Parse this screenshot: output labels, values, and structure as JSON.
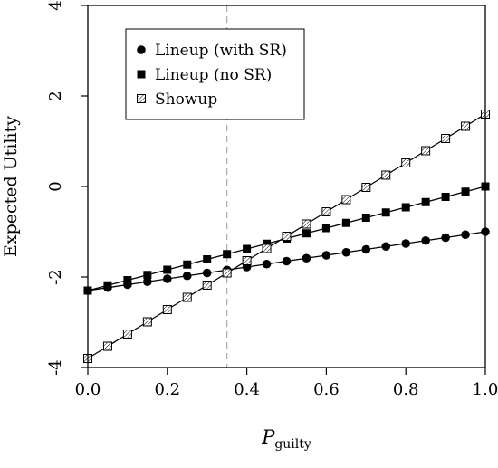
{
  "chart_data": {
    "type": "line",
    "xlabel": {
      "main": "P",
      "sub": "guilty"
    },
    "ylabel": "Expected Utility",
    "xlim": [
      0.0,
      1.0
    ],
    "ylim": [
      -4,
      4
    ],
    "x_ticks": [
      "0.0",
      "0.2",
      "0.4",
      "0.6",
      "0.8",
      "1.0"
    ],
    "y_ticks": [
      "-4",
      "-2",
      "0",
      "2",
      "4"
    ],
    "reference_line": {
      "x": 0.35,
      "style": "dashed",
      "color": "#aaaaaa"
    },
    "legend_position": "top-left",
    "x": [
      0.0,
      0.05,
      0.1,
      0.15,
      0.2,
      0.25,
      0.3,
      0.35,
      0.4,
      0.45,
      0.5,
      0.55,
      0.6,
      0.65,
      0.7,
      0.75,
      0.8,
      0.85,
      0.9,
      0.95,
      1.0
    ],
    "series": [
      {
        "name": "Lineup (with SR)",
        "marker": "circle",
        "values": [
          -2.3,
          -2.235,
          -2.17,
          -2.105,
          -2.04,
          -1.975,
          -1.91,
          -1.845,
          -1.78,
          -1.715,
          -1.65,
          -1.585,
          -1.52,
          -1.455,
          -1.39,
          -1.325,
          -1.26,
          -1.195,
          -1.13,
          -1.065,
          -1.0
        ]
      },
      {
        "name": "Lineup (no SR)",
        "marker": "square",
        "values": [
          -2.3,
          -2.185,
          -2.07,
          -1.955,
          -1.84,
          -1.725,
          -1.61,
          -1.495,
          -1.38,
          -1.265,
          -1.15,
          -1.035,
          -0.92,
          -0.805,
          -0.69,
          -0.575,
          -0.46,
          -0.345,
          -0.23,
          -0.115,
          0.0
        ]
      },
      {
        "name": "Showup",
        "marker": "hatched-square",
        "values": [
          -3.8,
          -3.53,
          -3.26,
          -2.99,
          -2.72,
          -2.45,
          -2.18,
          -1.91,
          -1.64,
          -1.37,
          -1.1,
          -0.83,
          -0.56,
          -0.29,
          -0.02,
          0.25,
          0.52,
          0.79,
          1.06,
          1.33,
          1.6
        ]
      }
    ]
  }
}
